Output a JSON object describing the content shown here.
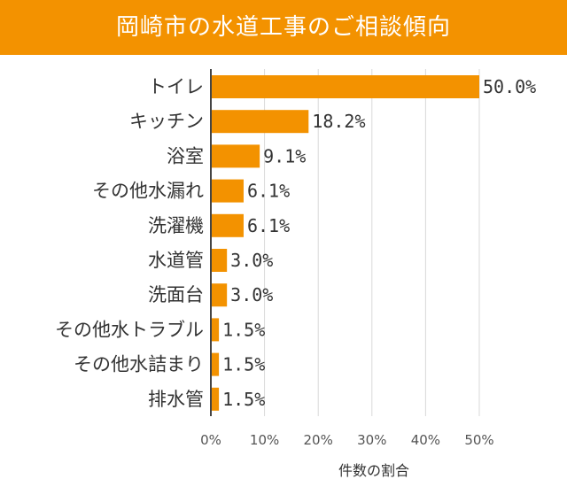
{
  "title": "岡崎市の水道工事のご相談傾向",
  "chart_data": {
    "type": "bar",
    "orientation": "horizontal",
    "title": "岡崎市の水道工事のご相談傾向",
    "xlabel": "件数の割合",
    "ylabel": "",
    "xlim": [
      0,
      50
    ],
    "xticks": [
      "0%",
      "10%",
      "20%",
      "30%",
      "40%",
      "50%"
    ],
    "categories": [
      "トイレ",
      "キッチン",
      "浴室",
      "その他水漏れ",
      "洗濯機",
      "水道管",
      "洗面台",
      "その他水トラブル",
      "その他水詰まり",
      "排水管"
    ],
    "values": [
      50.0,
      18.2,
      9.1,
      6.1,
      6.1,
      3.0,
      3.0,
      1.5,
      1.5,
      1.5
    ],
    "value_labels": [
      "50.0%",
      "18.2%",
      "9.1%",
      "6.1%",
      "6.1%",
      "3.0%",
      "3.0%",
      "1.5%",
      "1.5%",
      "1.5%"
    ],
    "bar_color": "#f39200",
    "grid": true
  }
}
